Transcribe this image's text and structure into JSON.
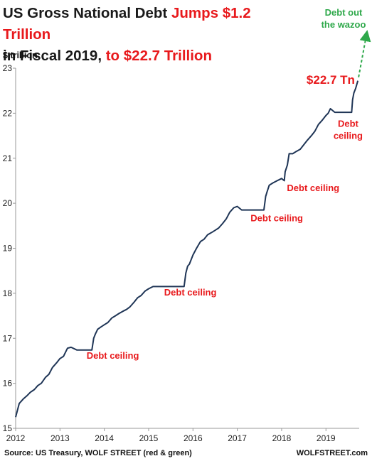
{
  "title": {
    "part1": "US Gross National Debt ",
    "part2": "Jumps $1.2 Trillion",
    "part3": " in Fiscal 2019, ",
    "part4": "to $22.7 Trillion"
  },
  "colors": {
    "line": "#1f3556",
    "red": "#e8191c",
    "green": "#2ea84a",
    "axis": "#999999"
  },
  "footer": {
    "source": "Source: US Treasury, WOLF STREET (red & green)",
    "brand": "WOLFSTREET.com"
  },
  "chart_data": {
    "type": "line",
    "title": "US Gross National Debt Jumps $1.2 Trillion in Fiscal 2019, to $22.7 Trillion",
    "ylabel": "$ trillion",
    "xlabel": "",
    "xlim": [
      2012.0,
      2019.75
    ],
    "ylim": [
      15,
      23
    ],
    "x_ticks": [
      "2012",
      "2013",
      "2014",
      "2015",
      "2016",
      "2017",
      "2018",
      "2019"
    ],
    "y_ticks": [
      "15",
      "16",
      "17",
      "18",
      "19",
      "20",
      "21",
      "22",
      "23"
    ],
    "grid": false,
    "series": [
      {
        "x": [
          2012.0,
          2012.08,
          2012.17,
          2012.25,
          2012.33,
          2012.42,
          2012.5,
          2012.58,
          2012.67,
          2012.75,
          2012.83,
          2012.92,
          2013.0,
          2013.08,
          2013.17,
          2013.25,
          2013.38,
          2013.5,
          2013.6,
          2013.72,
          2013.76,
          2013.8,
          2013.85,
          2013.92,
          2014.0,
          2014.08,
          2014.17,
          2014.25,
          2014.33,
          2014.42,
          2014.5,
          2014.58,
          2014.67,
          2014.75,
          2014.83,
          2014.92,
          2015.0,
          2015.1,
          2015.2,
          2015.3,
          2015.45,
          2015.6,
          2015.8,
          2015.84,
          2015.88,
          2015.92,
          2016.0,
          2016.08,
          2016.17,
          2016.25,
          2016.33,
          2016.42,
          2016.5,
          2016.58,
          2016.67,
          2016.75,
          2016.83,
          2016.92,
          2017.0,
          2017.1,
          2017.2,
          2017.4,
          2017.6,
          2017.64,
          2017.67,
          2017.72,
          2017.8,
          2017.9,
          2018.0,
          2018.06,
          2018.08,
          2018.13,
          2018.17,
          2018.25,
          2018.33,
          2018.42,
          2018.5,
          2018.58,
          2018.67,
          2018.75,
          2018.83,
          2018.92,
          2019.0,
          2019.05,
          2019.1,
          2019.2,
          2019.35,
          2019.5,
          2019.58,
          2019.6,
          2019.63,
          2019.67,
          2019.72
        ],
        "values": [
          15.25,
          15.55,
          15.65,
          15.72,
          15.8,
          15.86,
          15.95,
          16.0,
          16.13,
          16.2,
          16.35,
          16.45,
          16.55,
          16.6,
          16.78,
          16.8,
          16.74,
          16.74,
          16.74,
          16.74,
          17.0,
          17.1,
          17.2,
          17.25,
          17.3,
          17.35,
          17.45,
          17.5,
          17.55,
          17.6,
          17.64,
          17.7,
          17.8,
          17.9,
          17.95,
          18.05,
          18.1,
          18.15,
          18.15,
          18.15,
          18.15,
          18.15,
          18.15,
          18.45,
          18.6,
          18.65,
          18.85,
          19.0,
          19.15,
          19.2,
          19.3,
          19.35,
          19.4,
          19.45,
          19.55,
          19.65,
          19.8,
          19.9,
          19.93,
          19.85,
          19.85,
          19.85,
          19.85,
          20.15,
          20.25,
          20.4,
          20.45,
          20.5,
          20.55,
          20.5,
          20.7,
          20.85,
          21.1,
          21.1,
          21.15,
          21.2,
          21.3,
          21.4,
          21.5,
          21.6,
          21.75,
          21.85,
          21.95,
          22.0,
          22.1,
          22.02,
          22.02,
          22.02,
          22.02,
          22.3,
          22.45,
          22.55,
          22.72
        ]
      }
    ],
    "annotations": [
      {
        "text": "Debt ceiling",
        "x": 2013.6,
        "y": 16.55,
        "lines": [
          "Debt ceiling"
        ],
        "cls": "ann-red"
      },
      {
        "text": "Debt ceiling",
        "x": 2015.35,
        "y": 17.95,
        "lines": [
          "Debt ceiling"
        ],
        "cls": "ann-red"
      },
      {
        "text": "Debt ceiling",
        "x": 2017.3,
        "y": 19.6,
        "lines": [
          "Debt ceiling"
        ],
        "cls": "ann-red"
      },
      {
        "text": "Debt ceiling",
        "x": 2018.12,
        "y": 20.27,
        "lines": [
          "Debt ceiling"
        ],
        "cls": "ann-red"
      },
      {
        "text": "Debt ceiling",
        "x": 2019.5,
        "y": 21.7,
        "lines": [
          "Debt",
          "ceiling"
        ],
        "cls": "ann-red"
      },
      {
        "text": "$22.7 Tn",
        "x": 2019.3,
        "y": 22.65,
        "lines": [
          "$22.7 Tn"
        ],
        "cls": "ann-big"
      },
      {
        "text": "Debt out the wazoo",
        "lines": [
          "Debt out",
          "the wazoo"
        ],
        "cls": "ann-green"
      }
    ]
  }
}
